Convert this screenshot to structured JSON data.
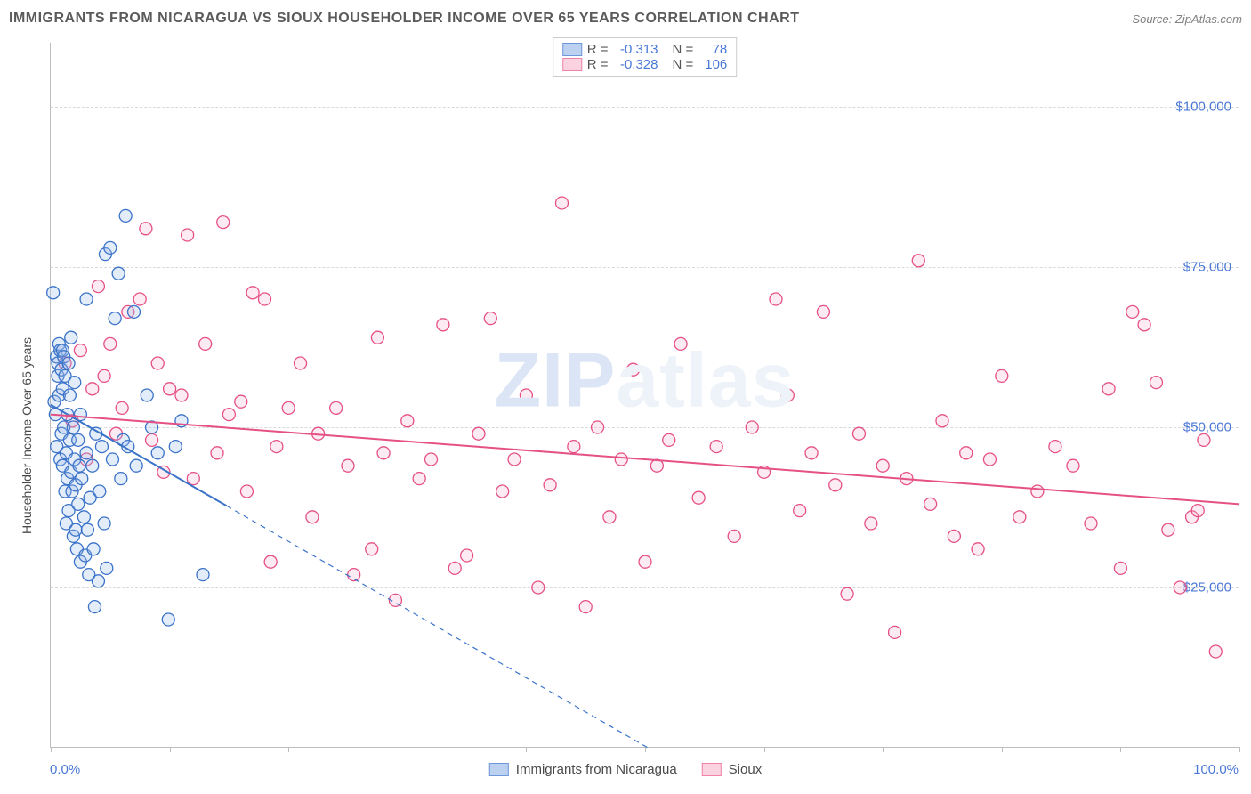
{
  "header": {
    "title": "IMMIGRANTS FROM NICARAGUA VS SIOUX HOUSEHOLDER INCOME OVER 65 YEARS CORRELATION CHART",
    "source_label": "Source:",
    "source_value": "ZipAtlas.com"
  },
  "watermark": {
    "part1": "ZIP",
    "part2": "atlas"
  },
  "chart": {
    "type": "scatter",
    "ylabel": "Householder Income Over 65 years",
    "xlim": [
      0,
      100
    ],
    "ylim": [
      0,
      110000
    ],
    "y_gridlines": [
      25000,
      50000,
      75000,
      100000
    ],
    "y_ticklabels": [
      "$25,000",
      "$50,000",
      "$75,000",
      "$100,000"
    ],
    "x_tick_positions": [
      0,
      10,
      20,
      30,
      40,
      50,
      60,
      70,
      80,
      90,
      100
    ],
    "x_endpoint_labels": [
      "0.0%",
      "100.0%"
    ],
    "background_color": "#ffffff",
    "grid_color": "#d8d8d8",
    "border_color": "#bdbdbd",
    "marker_radius": 7,
    "marker_fill_opacity": 0.28,
    "marker_stroke_width": 1.3,
    "trend_line_width": 2,
    "trend_dash": "6 5",
    "series": [
      {
        "name": "Immigrants from Nicaragua",
        "stroke": "#3b73c9",
        "fill": "#9cb9e8",
        "swatch_fill": "#bcd0ef",
        "swatch_border": "#6d99db",
        "R": "-0.313",
        "N": "78",
        "trend": {
          "y_at_x0": 53500,
          "y_at_x100": -53000
        },
        "points": [
          [
            0.2,
            71000
          ],
          [
            0.3,
            54000
          ],
          [
            0.4,
            52000
          ],
          [
            0.5,
            47000
          ],
          [
            0.5,
            61000
          ],
          [
            0.6,
            60000
          ],
          [
            0.6,
            58000
          ],
          [
            0.7,
            63000
          ],
          [
            0.7,
            55000
          ],
          [
            0.8,
            62000
          ],
          [
            0.8,
            45000
          ],
          [
            0.9,
            49000
          ],
          [
            0.9,
            59000
          ],
          [
            1.0,
            62000
          ],
          [
            1.0,
            56000
          ],
          [
            1.0,
            44000
          ],
          [
            1.1,
            61000
          ],
          [
            1.1,
            50000
          ],
          [
            1.2,
            40000
          ],
          [
            1.2,
            58000
          ],
          [
            1.3,
            35000
          ],
          [
            1.3,
            46000
          ],
          [
            1.4,
            52000
          ],
          [
            1.4,
            42000
          ],
          [
            1.5,
            60000
          ],
          [
            1.5,
            37000
          ],
          [
            1.6,
            48000
          ],
          [
            1.6,
            55000
          ],
          [
            1.7,
            43000
          ],
          [
            1.7,
            64000
          ],
          [
            1.8,
            40000
          ],
          [
            1.9,
            33000
          ],
          [
            1.9,
            50000
          ],
          [
            2.0,
            45000
          ],
          [
            2.0,
            57000
          ],
          [
            2.1,
            34000
          ],
          [
            2.1,
            41000
          ],
          [
            2.2,
            31000
          ],
          [
            2.3,
            38000
          ],
          [
            2.3,
            48000
          ],
          [
            2.4,
            44000
          ],
          [
            2.5,
            29000
          ],
          [
            2.5,
            52000
          ],
          [
            2.6,
            42000
          ],
          [
            2.8,
            36000
          ],
          [
            2.9,
            30000
          ],
          [
            3.0,
            70000
          ],
          [
            3.0,
            46000
          ],
          [
            3.1,
            34000
          ],
          [
            3.2,
            27000
          ],
          [
            3.3,
            39000
          ],
          [
            3.5,
            44000
          ],
          [
            3.6,
            31000
          ],
          [
            3.7,
            22000
          ],
          [
            3.8,
            49000
          ],
          [
            4.0,
            26000
          ],
          [
            4.1,
            40000
          ],
          [
            4.3,
            47000
          ],
          [
            4.5,
            35000
          ],
          [
            4.6,
            77000
          ],
          [
            4.7,
            28000
          ],
          [
            5.0,
            78000
          ],
          [
            5.2,
            45000
          ],
          [
            5.4,
            67000
          ],
          [
            5.7,
            74000
          ],
          [
            5.9,
            42000
          ],
          [
            6.1,
            48000
          ],
          [
            6.3,
            83000
          ],
          [
            6.5,
            47000
          ],
          [
            7.0,
            68000
          ],
          [
            7.2,
            44000
          ],
          [
            8.1,
            55000
          ],
          [
            8.5,
            50000
          ],
          [
            9.0,
            46000
          ],
          [
            9.9,
            20000
          ],
          [
            10.5,
            47000
          ],
          [
            11.0,
            51000
          ],
          [
            12.8,
            27000
          ]
        ]
      },
      {
        "name": "Sioux",
        "stroke": "#e55085",
        "fill": "#f6b8cf",
        "swatch_fill": "#fbd2df",
        "swatch_border": "#ef82aa",
        "R": "-0.328",
        "N": "106",
        "trend": {
          "y_at_x0": 52000,
          "y_at_x100": 38000
        },
        "points": [
          [
            1.2,
            60000
          ],
          [
            1.8,
            51000
          ],
          [
            2.5,
            62000
          ],
          [
            3.0,
            45000
          ],
          [
            3.5,
            56000
          ],
          [
            4.0,
            72000
          ],
          [
            4.5,
            58000
          ],
          [
            5.0,
            63000
          ],
          [
            5.5,
            49000
          ],
          [
            6.0,
            53000
          ],
          [
            6.5,
            68000
          ],
          [
            7.5,
            70000
          ],
          [
            8.0,
            81000
          ],
          [
            8.5,
            48000
          ],
          [
            9.0,
            60000
          ],
          [
            9.5,
            43000
          ],
          [
            10.0,
            56000
          ],
          [
            11.0,
            55000
          ],
          [
            11.5,
            80000
          ],
          [
            12.0,
            42000
          ],
          [
            13.0,
            63000
          ],
          [
            14.0,
            46000
          ],
          [
            14.5,
            82000
          ],
          [
            15.0,
            52000
          ],
          [
            16.0,
            54000
          ],
          [
            16.5,
            40000
          ],
          [
            17.0,
            71000
          ],
          [
            18.0,
            70000
          ],
          [
            18.5,
            29000
          ],
          [
            19.0,
            47000
          ],
          [
            20.0,
            53000
          ],
          [
            21.0,
            60000
          ],
          [
            22.0,
            36000
          ],
          [
            22.5,
            49000
          ],
          [
            24.0,
            53000
          ],
          [
            25.0,
            44000
          ],
          [
            25.5,
            27000
          ],
          [
            27.0,
            31000
          ],
          [
            27.5,
            64000
          ],
          [
            28.0,
            46000
          ],
          [
            29.0,
            23000
          ],
          [
            30.0,
            51000
          ],
          [
            31.0,
            42000
          ],
          [
            32.0,
            45000
          ],
          [
            33.0,
            66000
          ],
          [
            34.0,
            28000
          ],
          [
            35.0,
            30000
          ],
          [
            36.0,
            49000
          ],
          [
            37.0,
            67000
          ],
          [
            38.0,
            40000
          ],
          [
            39.0,
            45000
          ],
          [
            40.0,
            55000
          ],
          [
            41.0,
            25000
          ],
          [
            42.0,
            41000
          ],
          [
            43.0,
            85000
          ],
          [
            44.0,
            47000
          ],
          [
            45.0,
            22000
          ],
          [
            46.0,
            50000
          ],
          [
            47.0,
            36000
          ],
          [
            48.0,
            45000
          ],
          [
            49.0,
            59000
          ],
          [
            50.0,
            29000
          ],
          [
            51.0,
            44000
          ],
          [
            52.0,
            48000
          ],
          [
            53.0,
            63000
          ],
          [
            54.5,
            39000
          ],
          [
            56.0,
            47000
          ],
          [
            57.5,
            33000
          ],
          [
            59.0,
            50000
          ],
          [
            60.0,
            43000
          ],
          [
            61.0,
            70000
          ],
          [
            62.0,
            55000
          ],
          [
            63.0,
            37000
          ],
          [
            64.0,
            46000
          ],
          [
            65.0,
            68000
          ],
          [
            66.0,
            41000
          ],
          [
            67.0,
            24000
          ],
          [
            68.0,
            49000
          ],
          [
            69.0,
            35000
          ],
          [
            70.0,
            44000
          ],
          [
            71.0,
            18000
          ],
          [
            72.0,
            42000
          ],
          [
            73.0,
            76000
          ],
          [
            74.0,
            38000
          ],
          [
            75.0,
            51000
          ],
          [
            76.0,
            33000
          ],
          [
            77.0,
            46000
          ],
          [
            78.0,
            31000
          ],
          [
            79.0,
            45000
          ],
          [
            80.0,
            58000
          ],
          [
            81.5,
            36000
          ],
          [
            83.0,
            40000
          ],
          [
            84.5,
            47000
          ],
          [
            86.0,
            44000
          ],
          [
            87.5,
            35000
          ],
          [
            89.0,
            56000
          ],
          [
            90.0,
            28000
          ],
          [
            91.0,
            68000
          ],
          [
            92.0,
            66000
          ],
          [
            93.0,
            57000
          ],
          [
            94.0,
            34000
          ],
          [
            95.0,
            25000
          ],
          [
            96.0,
            36000
          ],
          [
            96.5,
            37000
          ],
          [
            97.0,
            48000
          ],
          [
            98.0,
            15000
          ]
        ]
      }
    ]
  }
}
